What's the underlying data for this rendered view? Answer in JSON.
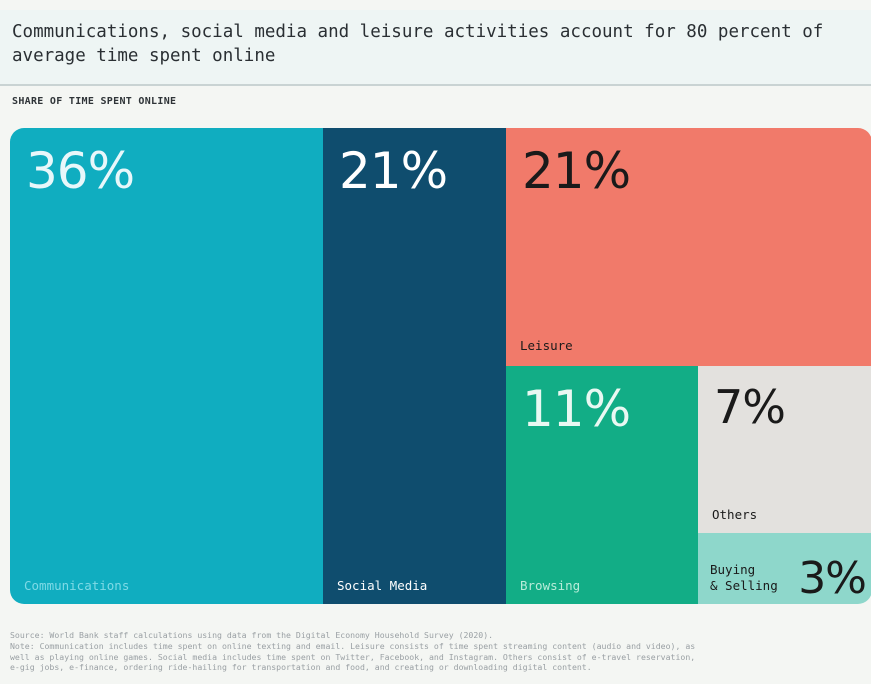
{
  "title": "Communications, social media and leisure activities account for 80 percent of average time spent online",
  "subtitle": "SHARE OF TIME SPENT ONLINE",
  "chart_data": {
    "type": "treemap",
    "title": "Communications, social media and leisure activities account for 80 percent of average time spent online",
    "subtitle": "SHARE OF TIME SPENT ONLINE",
    "unit": "%",
    "categories": [
      "Communications",
      "Social Media",
      "Leisure",
      "Browsing",
      "Others",
      "Buying & Selling"
    ],
    "values": [
      36,
      21,
      21,
      11,
      7,
      3
    ],
    "labels": [
      "36%",
      "21%",
      "21%",
      "11%",
      "7%",
      "3%"
    ],
    "display_names": [
      "Communications",
      "Social Media",
      "Leisure",
      "Browsing",
      "Others",
      "Buying\n& Selling"
    ],
    "colors": [
      "#10adc0",
      "#0f4d6e",
      "#f17a6a",
      "#12ad86",
      "#e3e1de",
      "#8ed7cb"
    ],
    "pct_colors": [
      "#e8f7fa",
      "#ffffff",
      "#1a1a1a",
      "#e9f8f2",
      "#1a1a1a",
      "#1a1a1a"
    ],
    "label_colors": [
      "#7fdae6",
      "#ffffff",
      "#1a1a1a",
      "#b9ecd9",
      "#1a1a1a",
      "#1a1a1a"
    ]
  },
  "notes": {
    "source": "Source: World Bank staff calculations using data from the Digital Economy Household Survey (2020).",
    "note_1": "Note: Communication includes time spent on online texting and email. Leisure  consists of time spent streaming content (audio and video), as",
    "note_2": "well as playing online games. Social media includes time spent on Twitter, Facebook, and Instagram. Others consist of e-travel reservation,",
    "note_3": "e-gig jobs, e-finance, ordering ride-hailing for transportation and food, and creating or downloading digital content."
  }
}
